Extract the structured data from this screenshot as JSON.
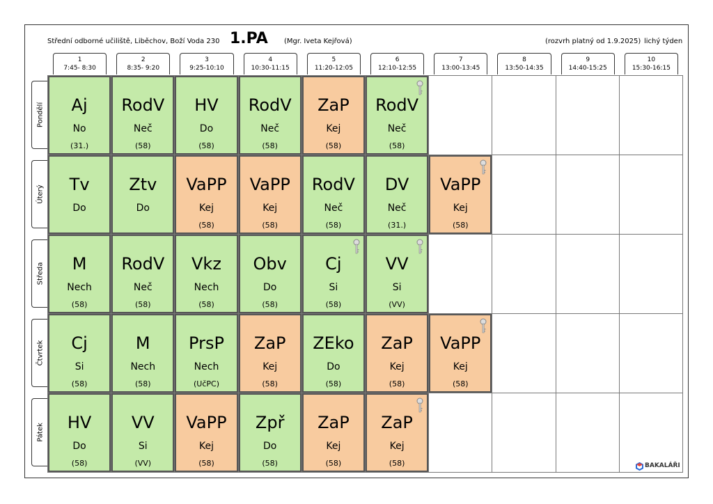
{
  "header": {
    "school": "Střední odborné učiliště, Liběchov, Boží Voda 230",
    "class": "1.PA",
    "teacher": "(Mgr. Iveta Kejřová)",
    "validity": "(rozvrh platný od 1.9.2025)",
    "week": "lichý týden"
  },
  "periods": [
    {
      "number": 1,
      "time": "7:45- 8:30"
    },
    {
      "number": 2,
      "time": "8:35- 9:20"
    },
    {
      "number": 3,
      "time": "9:25-10:10"
    },
    {
      "number": 4,
      "time": "10:30-11:15"
    },
    {
      "number": 5,
      "time": "11:20-12:05"
    },
    {
      "number": 6,
      "time": "12:10-12:55"
    },
    {
      "number": 7,
      "time": "13:00-13:45"
    },
    {
      "number": 8,
      "time": "13:50-14:35"
    },
    {
      "number": 9,
      "time": "14:40-15:25"
    },
    {
      "number": 10,
      "time": "15:30-16:15"
    }
  ],
  "days": [
    {
      "name": "Pondělí",
      "lessons": [
        {
          "subject": "Aj",
          "teacher": "No",
          "room": "(31.)",
          "color": "#c4eaa9"
        },
        {
          "subject": "RodV",
          "teacher": "Neč",
          "room": "(58)",
          "color": "#c4eaa9"
        },
        {
          "subject": "HV",
          "teacher": "Do",
          "room": "(58)",
          "color": "#c4eaa9"
        },
        {
          "subject": "RodV",
          "teacher": "Neč",
          "room": "(58)",
          "color": "#c4eaa9"
        },
        {
          "subject": "ZaP",
          "teacher": "Kej",
          "room": "(58)",
          "color": "#f8cb9f"
        },
        {
          "subject": "RodV",
          "teacher": "Neč",
          "room": "(58)",
          "color": "#c4eaa9",
          "key": true
        }
      ]
    },
    {
      "name": "Úterý",
      "lessons": [
        {
          "subject": "Tv",
          "teacher": "Do",
          "color": "#c4eaa9"
        },
        {
          "subject": "Ztv",
          "teacher": "Do",
          "color": "#c4eaa9"
        },
        {
          "subject": "VaPP",
          "teacher": "Kej",
          "room": "(58)",
          "color": "#f8cb9f"
        },
        {
          "subject": "VaPP",
          "teacher": "Kej",
          "room": "(58)",
          "color": "#f8cb9f"
        },
        {
          "subject": "RodV",
          "teacher": "Neč",
          "room": "(58)",
          "color": "#c4eaa9"
        },
        {
          "subject": "DV",
          "teacher": "Neč",
          "room": "(31.)",
          "color": "#c4eaa9"
        },
        {
          "subject": "VaPP",
          "teacher": "Kej",
          "room": "(58)",
          "color": "#f8cb9f",
          "key": true
        }
      ]
    },
    {
      "name": "Středa",
      "lessons": [
        {
          "subject": "M",
          "teacher": "Nech",
          "room": "(58)",
          "color": "#c4eaa9"
        },
        {
          "subject": "RodV",
          "teacher": "Neč",
          "room": "(58)",
          "color": "#c4eaa9"
        },
        {
          "subject": "Vkz",
          "teacher": "Nech",
          "room": "(58)",
          "color": "#c4eaa9"
        },
        {
          "subject": "Obv",
          "teacher": "Do",
          "room": "(58)",
          "color": "#c4eaa9"
        },
        {
          "subject": "Cj",
          "teacher": "Si",
          "room": "(58)",
          "color": "#c4eaa9",
          "key": true
        },
        {
          "subject": "VV",
          "teacher": "Si",
          "room": "(VV)",
          "color": "#c4eaa9",
          "key": true
        }
      ]
    },
    {
      "name": "Čtvrtek",
      "lessons": [
        {
          "subject": "Cj",
          "teacher": "Si",
          "room": "(58)",
          "color": "#c4eaa9"
        },
        {
          "subject": "M",
          "teacher": "Nech",
          "room": "(58)",
          "color": "#c4eaa9"
        },
        {
          "subject": "PrsP",
          "teacher": "Nech",
          "room": "(UčPC)",
          "color": "#c4eaa9"
        },
        {
          "subject": "ZaP",
          "teacher": "Kej",
          "room": "(58)",
          "color": "#f8cb9f"
        },
        {
          "subject": "ZEko",
          "teacher": "Do",
          "room": "(58)",
          "color": "#c4eaa9"
        },
        {
          "subject": "ZaP",
          "teacher": "Kej",
          "room": "(58)",
          "color": "#f8cb9f"
        },
        {
          "subject": "VaPP",
          "teacher": "Kej",
          "room": "(58)",
          "color": "#f8cb9f",
          "key": true
        }
      ]
    },
    {
      "name": "Pátek",
      "lessons": [
        {
          "subject": "HV",
          "teacher": "Do",
          "room": "(58)",
          "color": "#c4eaa9"
        },
        {
          "subject": "VV",
          "teacher": "Si",
          "room": "(VV)",
          "color": "#c4eaa9"
        },
        {
          "subject": "VaPP",
          "teacher": "Kej",
          "room": "(58)",
          "color": "#f8cb9f"
        },
        {
          "subject": "Zpř",
          "teacher": "Do",
          "room": "(58)",
          "color": "#c4eaa9"
        },
        {
          "subject": "ZaP",
          "teacher": "Kej",
          "room": "(58)",
          "color": "#f8cb9f"
        },
        {
          "subject": "ZaP",
          "teacher": "Kej",
          "room": "(58)",
          "color": "#f8cb9f",
          "key": true
        }
      ]
    }
  ],
  "footer": {
    "brand": "BAKALÁŘI"
  }
}
